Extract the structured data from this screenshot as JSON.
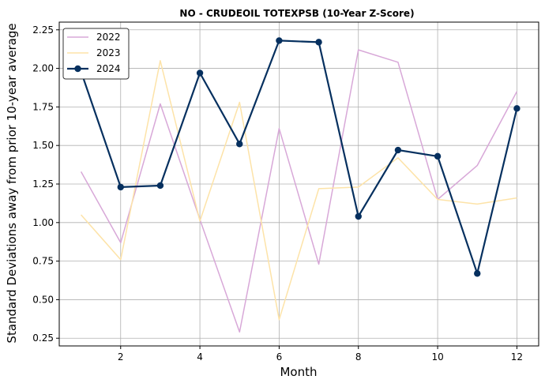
{
  "chart_data": {
    "type": "line",
    "title": "NO - CRUDEOIL TOTEXPSB (10-Year Z-Score)",
    "xlabel": "Month",
    "ylabel": "Standard Deviations away from prior 10-year average",
    "xlim": [
      0.45,
      12.55
    ],
    "ylim": [
      0.2,
      2.3
    ],
    "x_ticks": [
      2,
      4,
      6,
      8,
      10,
      12
    ],
    "y_ticks": [
      0.25,
      0.5,
      0.75,
      1.0,
      1.25,
      1.5,
      1.75,
      2.0,
      2.25
    ],
    "y_tick_labels": [
      "0.25",
      "0.50",
      "0.75",
      "1.00",
      "1.25",
      "1.50",
      "1.75",
      "2.00",
      "2.25"
    ],
    "grid": true,
    "legend_position": "top-left",
    "x": [
      1,
      2,
      3,
      4,
      5,
      6,
      7,
      8,
      9,
      10,
      11,
      12
    ],
    "series": [
      {
        "name": "2022",
        "color": "#d8a8d8",
        "marker": false,
        "width": 1.5,
        "values": [
          1.33,
          0.87,
          1.77,
          1.02,
          0.29,
          1.61,
          0.73,
          2.12,
          2.04,
          1.15,
          1.37,
          1.85
        ]
      },
      {
        "name": "2023",
        "color": "#fde3a8",
        "marker": false,
        "width": 1.5,
        "values": [
          1.05,
          0.76,
          2.05,
          1.01,
          1.78,
          0.37,
          1.22,
          1.23,
          1.42,
          1.15,
          1.12,
          1.16
        ]
      },
      {
        "name": "2024",
        "color": "#06305f",
        "marker": true,
        "width": 2.2,
        "values": [
          1.98,
          1.23,
          1.24,
          1.97,
          1.51,
          2.18,
          2.17,
          1.04,
          1.47,
          1.43,
          0.67,
          1.74
        ]
      }
    ]
  }
}
